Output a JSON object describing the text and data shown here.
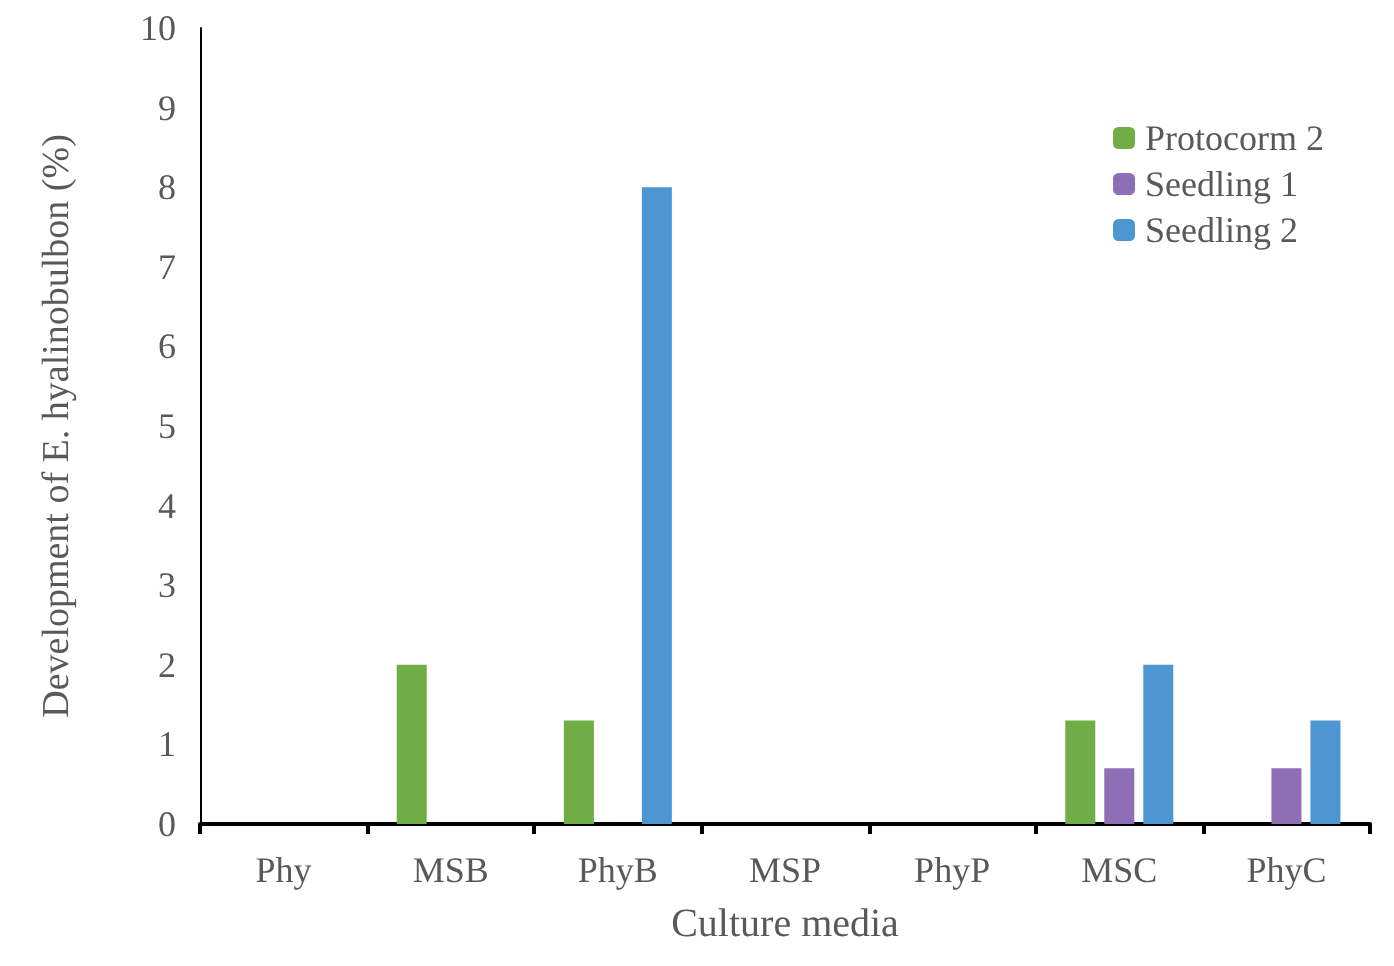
{
  "chart_data": {
    "type": "bar",
    "xlabel": "Culture media",
    "ylabel": "Development of E. hyalinobulbon (%)",
    "categories": [
      "Phy",
      "MSB",
      "PhyB",
      "MSP",
      "PhyP",
      "MSC",
      "PhyC"
    ],
    "series": [
      {
        "name": "Protocorm 2",
        "color": "#70ad47",
        "values": [
          0,
          2,
          1.3,
          0,
          0,
          1.3,
          0
        ]
      },
      {
        "name": "Seedling 1",
        "color": "#8e6fb5",
        "values": [
          0,
          0,
          0,
          0,
          0,
          0.7,
          0.7
        ]
      },
      {
        "name": "Seedling 2",
        "color": "#4e96d1",
        "values": [
          0,
          0,
          8,
          0,
          0,
          2,
          1.3
        ]
      }
    ],
    "ylim": [
      0,
      10
    ],
    "yticks": [
      0,
      1,
      2,
      3,
      4,
      5,
      6,
      7,
      8,
      9,
      10
    ],
    "grid": false,
    "legend": "top right"
  }
}
